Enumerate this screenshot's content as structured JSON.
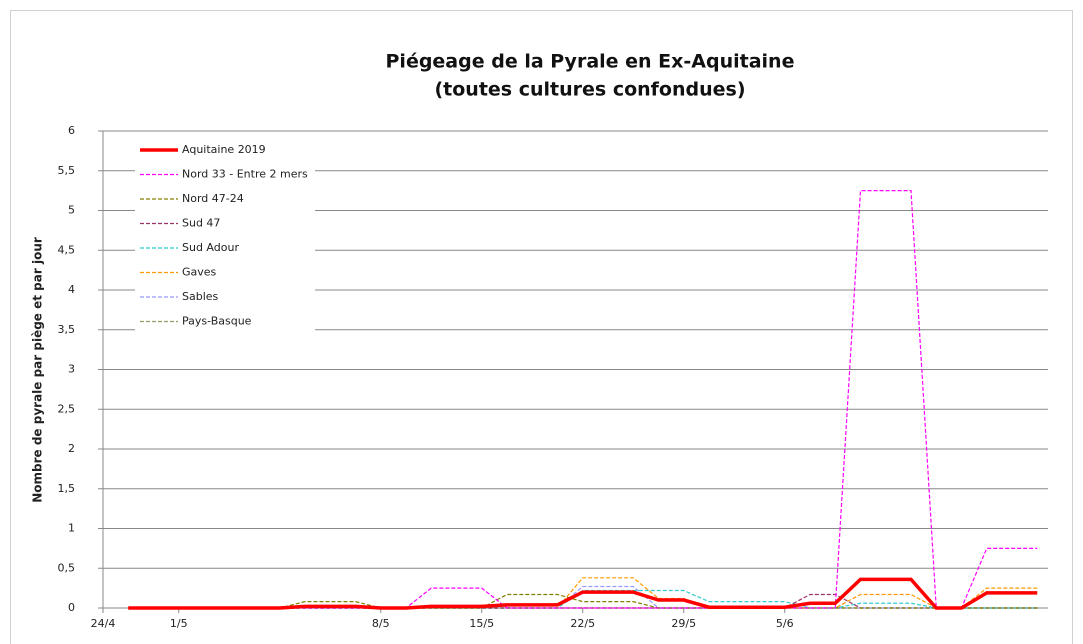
{
  "chart_data": {
    "type": "line",
    "title": "Piégeage de la Pyrale en Ex-Aquitaine",
    "subtitle": "(toutes cultures confondues)",
    "y_label": "Nombre de pyrale par piège et par jour",
    "categories": [
      "24/4",
      null,
      null,
      "1/5",
      null,
      null,
      null,
      null,
      null,
      null,
      null,
      "8/5",
      null,
      null,
      null,
      "15/5",
      null,
      null,
      null,
      "22/5",
      null,
      null,
      null,
      "29/5",
      null,
      null,
      null,
      "5/6",
      null,
      null,
      null,
      null,
      null,
      null,
      null,
      null,
      null,
      null
    ],
    "ylim": [
      0,
      6
    ],
    "yticks": [
      0,
      {
        "value": 0.5,
        "label": "0,5"
      },
      1,
      {
        "value": 1.5,
        "label": "1,5"
      },
      2,
      {
        "value": 2.5,
        "label": "2,5"
      },
      3,
      {
        "value": 3.5,
        "label": "3,5"
      },
      4,
      {
        "value": 4.5,
        "label": "4,5"
      },
      5,
      {
        "value": 5.5,
        "label": "5,5"
      },
      6
    ],
    "grid": true,
    "legend": "top-left",
    "series": [
      {
        "name": "Aquitaine 2019",
        "color": "#ff0000",
        "dashed": false,
        "values": [
          null,
          0,
          0,
          0,
          0,
          0,
          0,
          0,
          0.02,
          0.02,
          0.02,
          0,
          0,
          0.02,
          0.02,
          0.02,
          0.04,
          0.04,
          0.04,
          0.2,
          0.2,
          0.2,
          0.1,
          0.1,
          0.01,
          0.01,
          0.01,
          0.01,
          0.06,
          0.06,
          0.36,
          0.36,
          0.36,
          0,
          0,
          0.19,
          0.19,
          0.19
        ]
      },
      {
        "name": "Nord 33 - Entre 2 mers",
        "color": "#ff00ff",
        "dashed": true,
        "values": [
          null,
          0,
          0,
          0,
          0,
          0,
          0,
          0,
          0,
          0,
          0,
          0,
          0,
          0.25,
          0.25,
          0.25,
          0,
          0,
          0,
          0,
          0,
          0,
          0,
          0,
          0,
          0,
          0,
          0,
          0,
          0,
          5.25,
          5.25,
          5.25,
          0,
          0,
          0.75,
          0.75,
          0.75
        ]
      },
      {
        "name": "Nord 47-24",
        "color": "#808000",
        "dashed": true,
        "values": [
          null,
          0,
          0,
          0,
          0,
          0,
          0,
          0,
          0.08,
          0.08,
          0.08,
          0,
          0,
          0,
          0,
          0,
          0.17,
          0.17,
          0.17,
          0.08,
          0.08,
          0.08,
          0,
          0,
          0,
          0,
          0,
          0,
          0,
          0,
          0,
          0,
          0,
          0,
          0,
          0,
          0,
          0
        ]
      },
      {
        "name": "Sud 47",
        "color": "#993366",
        "dashed": true,
        "values": [
          null,
          0,
          0,
          0,
          0,
          0,
          0,
          0,
          0,
          0,
          0,
          0,
          0,
          0,
          0,
          0,
          0,
          0,
          0,
          0,
          0,
          0,
          0,
          0,
          0,
          0,
          0,
          0,
          0.17,
          0.17,
          0,
          0,
          0,
          0,
          0,
          0,
          0,
          0
        ]
      },
      {
        "name": "Sud Adour",
        "color": "#33cccc",
        "dashed": true,
        "values": [
          null,
          0,
          0,
          0,
          0,
          0,
          0,
          0,
          0,
          0,
          0,
          0,
          0,
          0,
          0,
          0,
          0,
          0,
          0,
          0.22,
          0.22,
          0.22,
          0.22,
          0.22,
          0.08,
          0.08,
          0.08,
          0.08,
          0,
          0,
          0.06,
          0.06,
          0.06,
          0,
          0,
          0,
          0,
          0
        ]
      },
      {
        "name": "Gaves",
        "color": "#ff9900",
        "dashed": true,
        "values": [
          null,
          0,
          0,
          0,
          0,
          0,
          0,
          0,
          0,
          0,
          0,
          0,
          0,
          0,
          0,
          0,
          0,
          0,
          0,
          0.38,
          0.38,
          0.38,
          0.12,
          0.12,
          0,
          0,
          0,
          0,
          0,
          0,
          0.17,
          0.17,
          0.17,
          0,
          0,
          0.25,
          0.25,
          0.25
        ]
      },
      {
        "name": "Sables",
        "color": "#9999ff",
        "dashed": true,
        "values": [
          null,
          0,
          0,
          0,
          0,
          0,
          0,
          0,
          0,
          0,
          0,
          0,
          0,
          0,
          0,
          0,
          0,
          0,
          0,
          0.27,
          0.27,
          0.27,
          0,
          0,
          0,
          0,
          0,
          0,
          0,
          0,
          0,
          0,
          0,
          0,
          0,
          0,
          0,
          0
        ]
      },
      {
        "name": "Pays-Basque",
        "color": "#999966",
        "dashed": true,
        "values": [
          null,
          0,
          0,
          0,
          0,
          0,
          0,
          0,
          0,
          0,
          0,
          0,
          0,
          0,
          0,
          0,
          0,
          0,
          0,
          0,
          0,
          0,
          0,
          0,
          0,
          0,
          0,
          0,
          0,
          0,
          0,
          0,
          0,
          0,
          0,
          0,
          0,
          0
        ]
      }
    ]
  }
}
